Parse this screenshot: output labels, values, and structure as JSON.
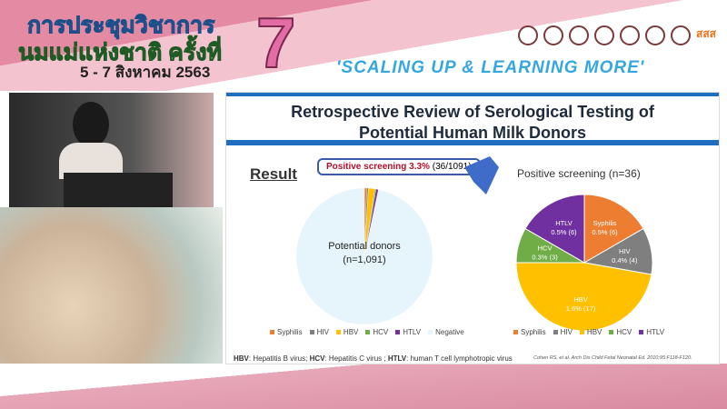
{
  "banner": {
    "title_line1": "การประชุมวิชาการ",
    "title_line2": "นมแม่แห่งชาติ ครั้งที่",
    "date": "5 - 7 สิงหาคม 2563",
    "number": "7",
    "slogan": "'SCALING UP & LEARNING MORE'",
    "logo_text": "สสส"
  },
  "slide": {
    "title_line1": "Retrospective Review of Serological Testing of",
    "title_line2": "Potential Human Milk Donors",
    "result_label": "Result",
    "callout_bold": "Positive screening 3.3%",
    "callout_rest": "(36/1091)",
    "footnote": {
      "hbv": "HBV",
      "hbv_text": ": Hepatitis B virus; ",
      "hcv": "HCV",
      "hcv_text": ": Hepatitis C virus ; ",
      "htlv": "HTLV",
      "htlv_text": ": human T cell lymphotropic virus"
    },
    "citation": "Cohen RS, et al. Arch Dis Child Fetal Neonatal Ed. 2010;95:F118-F120."
  },
  "chart_data": [
    {
      "type": "pie",
      "center_label": "Potential donors",
      "center_sublabel": "(n=1,091)",
      "categories": [
        "Syphilis",
        "HIV",
        "HBV",
        "HCV",
        "HTLV",
        "Negative"
      ],
      "values": [
        6,
        4,
        17,
        3,
        6,
        1055
      ],
      "colors": [
        "#ed7d31",
        "#7f7f7f",
        "#ffc000",
        "#70ad47",
        "#7030a0",
        "#e6f5fc"
      ],
      "legend": "bottom"
    },
    {
      "type": "pie",
      "title": "Positive screening (n=36)",
      "categories": [
        "Syphilis",
        "HIV",
        "HBV",
        "HCV",
        "HTLV"
      ],
      "values": [
        6,
        4,
        17,
        3,
        6
      ],
      "labels": [
        "0.5% (6)",
        "0.4% (4)",
        "1.6% (17)",
        "0.3% (3)",
        "0.5% (6)"
      ],
      "colors": [
        "#ed7d31",
        "#7f7f7f",
        "#ffc000",
        "#70ad47",
        "#7030a0"
      ],
      "legend": "bottom"
    }
  ]
}
